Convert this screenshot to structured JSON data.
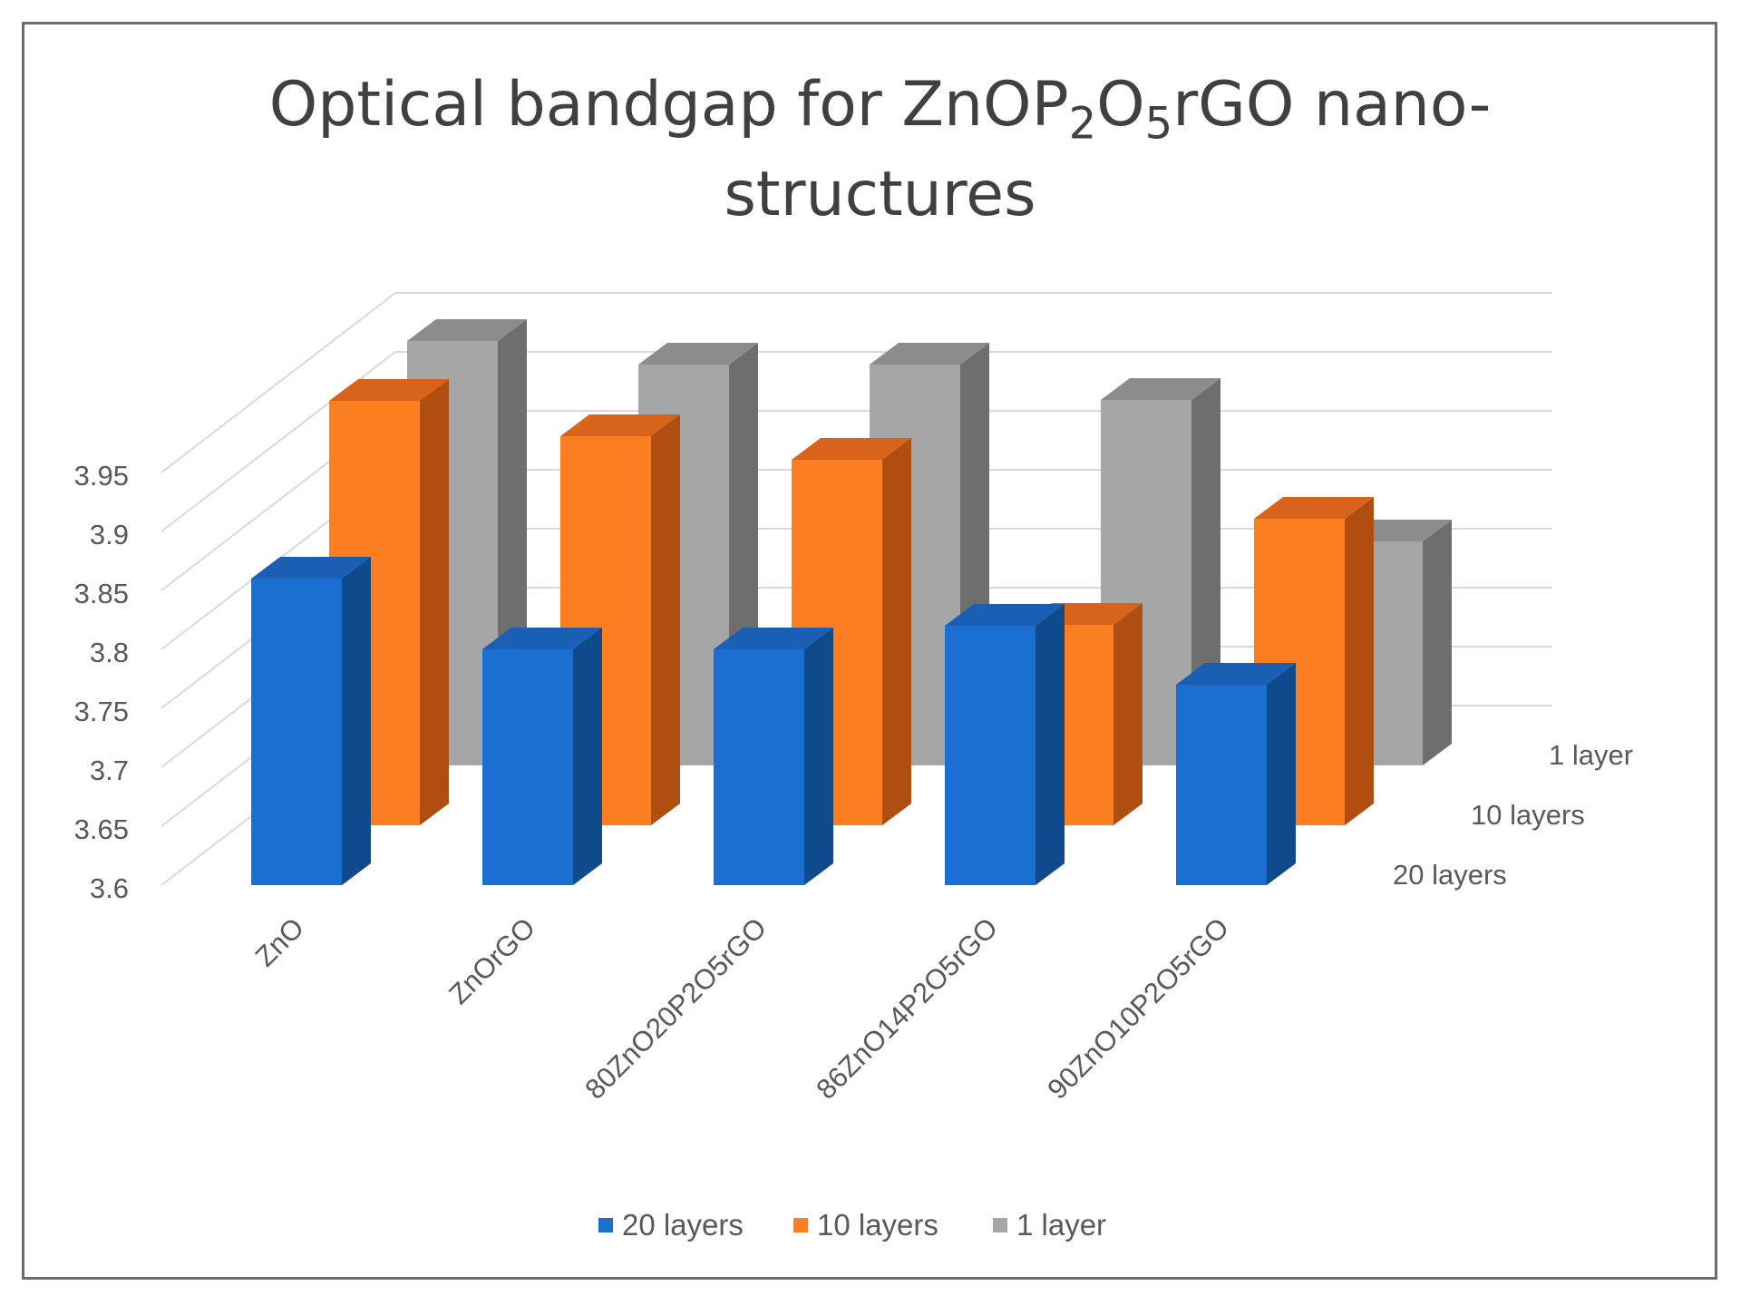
{
  "chart_data": {
    "type": "bar",
    "subtype": "3d-column",
    "title_parts": {
      "lead": "Optical bandgap for ZnOP",
      "sub1": "2",
      "mid": "O",
      "sub2": "5",
      "tail": "rGO nano-",
      "line2": "structures"
    },
    "categories": [
      "ZnO",
      "ZnOrGO",
      "80ZnO20P2O5rGO",
      "86ZnO14P2O5rGO",
      "90ZnO10P2O5rGO"
    ],
    "series": [
      {
        "name": "20 layers",
        "values": [
          3.86,
          3.8,
          3.8,
          3.82,
          3.77
        ]
      },
      {
        "name": "10 layers",
        "values": [
          3.96,
          3.93,
          3.91,
          3.77,
          3.86
        ]
      },
      {
        "name": "1 layer",
        "values": [
          3.96,
          3.94,
          3.94,
          3.91,
          3.79
        ]
      }
    ],
    "yticks": [
      "3.6",
      "3.65",
      "3.7",
      "3.75",
      "3.8",
      "3.85",
      "3.9",
      "3.95"
    ],
    "ylim": [
      3.6,
      3.95
    ],
    "depth_labels": [
      "20 layers",
      "10 layers",
      "1 layer"
    ],
    "legend": {
      "position": "bottom",
      "items": [
        "20 layers",
        "10 layers",
        "1 layer"
      ]
    },
    "colors": {
      "20 layers": {
        "front": "#1b6fd0",
        "side": "#0e4a8c",
        "top": "#1a5fb4"
      },
      "10 layers": {
        "front": "#fb7e21",
        "side": "#b04e12",
        "top": "#d7641a"
      },
      "1 layer": {
        "front": "#a6a6a6",
        "side": "#6e6e6e",
        "top": "#8c8c8c"
      }
    },
    "grid": true
  }
}
